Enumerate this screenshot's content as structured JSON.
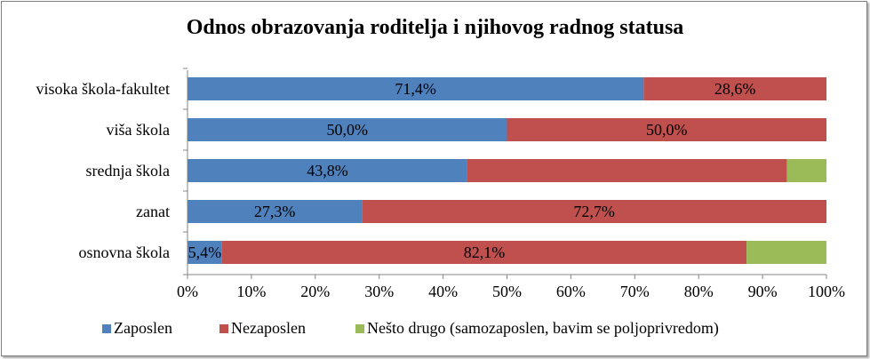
{
  "chart_data": {
    "type": "bar",
    "orientation": "horizontal",
    "stacked": "percent",
    "title": "Odnos obrazovanja  roditelja  i njihovog  radnog  statusa",
    "categories": [
      "visoka škola-fakultet",
      "viša škola",
      "srednja škola",
      "zanat",
      "osnovna škola"
    ],
    "series": [
      {
        "name": "Zaposlen",
        "color": "#4f81bd",
        "values": [
          71.4,
          50.0,
          43.8,
          27.3,
          5.4
        ],
        "labels": [
          "71,4%",
          "50,0%",
          "43,8%",
          "27,3%",
          "5,4%"
        ]
      },
      {
        "name": "Nezaposlen",
        "color": "#c0504d",
        "values": [
          28.6,
          50.0,
          50.0,
          72.7,
          82.1
        ],
        "labels": [
          "28,6%",
          "50,0%",
          "",
          "72,7%",
          "82,1%"
        ]
      },
      {
        "name": "Nešto drugo (samozaposlen, bavim se poljoprivredom)",
        "color": "#9bbb59",
        "values": [
          0,
          0,
          6.2,
          0,
          12.5
        ],
        "labels": [
          "",
          "",
          "",
          "",
          ""
        ]
      }
    ],
    "xlim": [
      0,
      100
    ],
    "xticks": [
      "0%",
      "10%",
      "20%",
      "30%",
      "40%",
      "50%",
      "60%",
      "70%",
      "80%",
      "90%",
      "100%"
    ],
    "legend": "bottom",
    "grid": false
  }
}
